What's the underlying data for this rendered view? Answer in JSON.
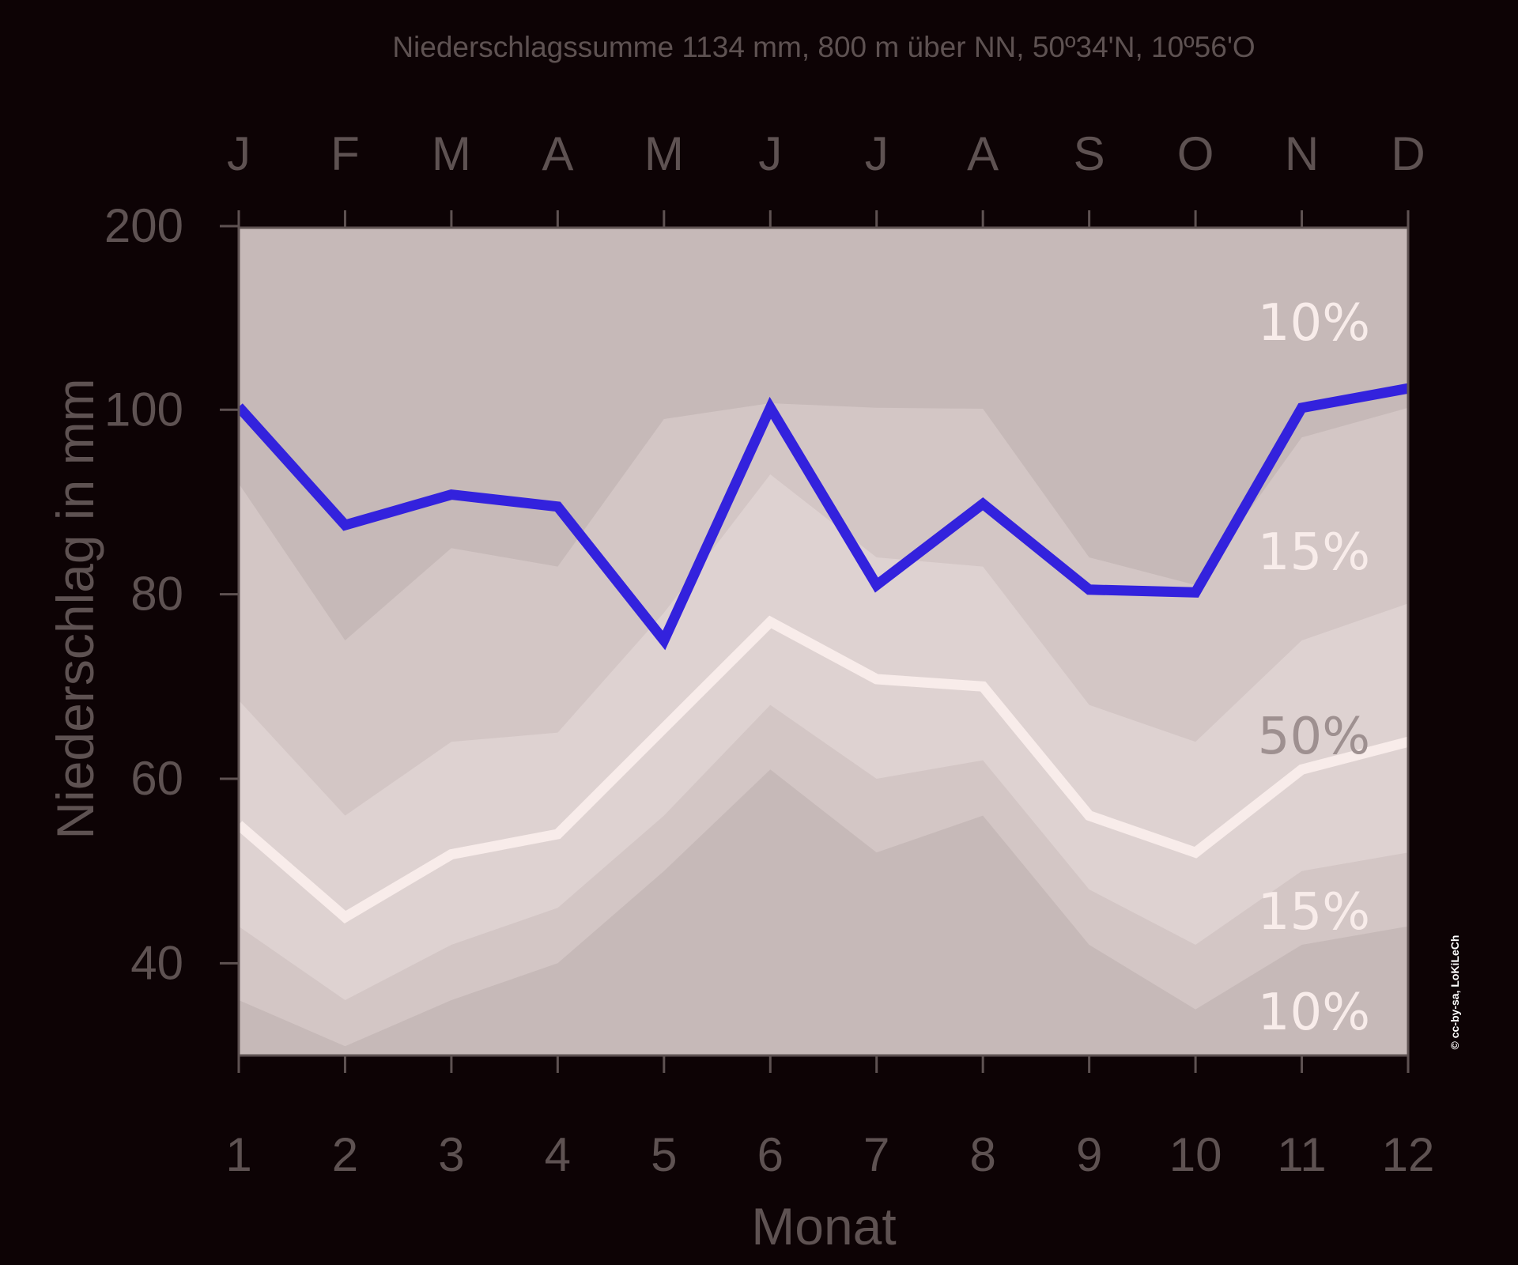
{
  "chart_data": {
    "type": "line",
    "title": "Niederschlagssumme 1134 mm, 800 m über NN, 50º34'N, 10º56'O",
    "xlabel": "Monat",
    "ylabel": "Niederschlag in mm",
    "x": [
      1,
      2,
      3,
      4,
      5,
      6,
      7,
      8,
      9,
      10,
      11,
      12
    ],
    "month_letters": [
      "J",
      "F",
      "M",
      "A",
      "M",
      "J",
      "J",
      "A",
      "S",
      "O",
      "N",
      "D"
    ],
    "yticks": [
      {
        "value": 40,
        "label": "40"
      },
      {
        "value": 60,
        "label": "60"
      },
      {
        "value": 80,
        "label": "80"
      },
      {
        "value": 100,
        "label": "100"
      },
      {
        "value": 200,
        "label": "200"
      }
    ],
    "band_boundaries": {
      "p10_lower": [
        36,
        31,
        36,
        40,
        50,
        61,
        52,
        56,
        42,
        35,
        42,
        44
      ],
      "p25_lower": [
        44,
        36,
        42,
        46,
        56,
        68,
        60,
        62,
        48,
        42,
        50,
        52
      ],
      "p75_upper": [
        68.5,
        56,
        64,
        65,
        78,
        93,
        84,
        83,
        68,
        64,
        75,
        79
      ],
      "p90_upper": [
        92,
        75,
        85,
        83,
        99,
        104,
        101.5,
        101,
        84,
        81,
        97,
        101.5
      ]
    },
    "band_labels": {
      "top_10": "10%",
      "upper_15": "15%",
      "middle_50": "50%",
      "lower_15": "15%",
      "bottom_10": "10%"
    },
    "series": [
      {
        "values": [
          102,
          87.5,
          90.8,
          89.5,
          75,
          101.5,
          81,
          89.8,
          80.5,
          80.2,
          101.5,
          112
        ],
        "color": "#3322dd"
      },
      {
        "values": [
          55,
          45,
          51.8,
          54,
          65.5,
          77,
          70.8,
          70,
          56,
          52,
          61,
          64
        ],
        "color": "#f8ecea"
      }
    ],
    "colors": {
      "background": "#0d0305",
      "outer_band": "#c6b9b8",
      "mid_band": "#d3c6c5",
      "inner_band": "#ded2d1",
      "axis": "#5e5252"
    },
    "copyright": "© cc-by-sa, LoKiLeCh"
  }
}
